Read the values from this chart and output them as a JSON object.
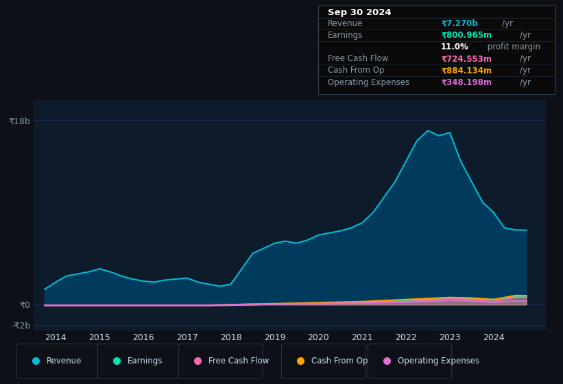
{
  "bg_color": "#0d1117",
  "plot_bg_color": "#0d1b2a",
  "title_box": {
    "date": "Sep 30 2024",
    "rows": [
      {
        "label": "Revenue",
        "value": "₹7.270b",
        "unit": "/yr",
        "value_color": "#00bcd4"
      },
      {
        "label": "Earnings",
        "value": "₹800.965m",
        "unit": "/yr",
        "value_color": "#00e5b0"
      },
      {
        "label": "",
        "value": "11.0%",
        "unit": " profit margin",
        "value_color": "#ffffff"
      },
      {
        "label": "Free Cash Flow",
        "value": "₹724.553m",
        "unit": "/yr",
        "value_color": "#ff69b4"
      },
      {
        "label": "Cash From Op",
        "value": "₹884.134m",
        "unit": "/yr",
        "value_color": "#ffa500"
      },
      {
        "label": "Operating Expenses",
        "value": "₹348.198m",
        "unit": "/yr",
        "value_color": "#da70d6"
      }
    ]
  },
  "yticks": [
    "₹18b",
    "₹0",
    "-₹2b"
  ],
  "ytick_values": [
    18,
    0,
    -2
  ],
  "ylim": [
    -2.5,
    20
  ],
  "xlim": [
    2013.5,
    2025.2
  ],
  "xticks": [
    2014,
    2015,
    2016,
    2017,
    2018,
    2019,
    2020,
    2021,
    2022,
    2023,
    2024
  ],
  "series": {
    "revenue": {
      "color": "#00bcd4",
      "fill_color": "#003a5c",
      "x": [
        2013.75,
        2014.0,
        2014.25,
        2014.5,
        2014.75,
        2015.0,
        2015.25,
        2015.5,
        2015.75,
        2016.0,
        2016.25,
        2016.5,
        2016.75,
        2017.0,
        2017.25,
        2017.5,
        2017.75,
        2018.0,
        2018.25,
        2018.5,
        2018.75,
        2019.0,
        2019.25,
        2019.5,
        2019.75,
        2020.0,
        2020.25,
        2020.5,
        2020.75,
        2021.0,
        2021.25,
        2021.5,
        2021.75,
        2022.0,
        2022.25,
        2022.5,
        2022.75,
        2023.0,
        2023.25,
        2023.5,
        2023.75,
        2024.0,
        2024.25,
        2024.5,
        2024.75
      ],
      "y": [
        1.5,
        2.2,
        2.8,
        3.0,
        3.2,
        3.5,
        3.2,
        2.8,
        2.5,
        2.3,
        2.2,
        2.4,
        2.5,
        2.6,
        2.2,
        2.0,
        1.8,
        2.0,
        3.5,
        5.0,
        5.5,
        6.0,
        6.2,
        6.0,
        6.3,
        6.8,
        7.0,
        7.2,
        7.5,
        8.0,
        9.0,
        10.5,
        12.0,
        14.0,
        16.0,
        17.0,
        16.5,
        16.8,
        14.0,
        12.0,
        10.0,
        9.0,
        7.5,
        7.3,
        7.27
      ]
    },
    "earnings": {
      "color": "#00e5b0",
      "x": [
        2013.75,
        2014.0,
        2014.5,
        2015.0,
        2015.5,
        2016.0,
        2016.5,
        2017.0,
        2017.5,
        2018.0,
        2018.5,
        2019.0,
        2019.5,
        2020.0,
        2020.5,
        2021.0,
        2021.5,
        2022.0,
        2022.5,
        2023.0,
        2023.5,
        2024.0,
        2024.5,
        2024.75
      ],
      "y": [
        -0.05,
        -0.05,
        -0.05,
        -0.05,
        -0.05,
        -0.05,
        -0.05,
        -0.05,
        -0.05,
        -0.05,
        0.0,
        0.05,
        0.1,
        0.15,
        0.2,
        0.25,
        0.3,
        0.35,
        0.5,
        0.7,
        0.6,
        0.5,
        0.8,
        0.8
      ]
    },
    "free_cash_flow": {
      "color": "#ff69b4",
      "x": [
        2013.75,
        2014.5,
        2015.0,
        2015.5,
        2016.0,
        2016.5,
        2017.0,
        2017.5,
        2018.0,
        2018.5,
        2019.0,
        2019.5,
        2020.0,
        2020.5,
        2021.0,
        2021.5,
        2022.0,
        2022.5,
        2023.0,
        2023.5,
        2024.0,
        2024.5,
        2024.75
      ],
      "y": [
        -0.1,
        -0.1,
        -0.1,
        -0.1,
        -0.1,
        -0.1,
        -0.1,
        -0.1,
        -0.05,
        0.0,
        0.05,
        0.1,
        0.1,
        0.15,
        0.2,
        0.25,
        0.3,
        0.4,
        0.6,
        0.5,
        0.3,
        0.7,
        0.72
      ]
    },
    "cash_from_op": {
      "color": "#ffa500",
      "x": [
        2013.75,
        2014.5,
        2015.0,
        2015.5,
        2016.0,
        2016.5,
        2017.0,
        2017.5,
        2018.0,
        2018.5,
        2019.0,
        2019.5,
        2020.0,
        2020.5,
        2021.0,
        2021.5,
        2022.0,
        2022.5,
        2023.0,
        2023.5,
        2024.0,
        2024.5,
        2024.75
      ],
      "y": [
        -0.05,
        -0.05,
        -0.05,
        -0.05,
        -0.05,
        -0.05,
        -0.05,
        -0.05,
        0.0,
        0.05,
        0.1,
        0.15,
        0.2,
        0.25,
        0.3,
        0.4,
        0.5,
        0.6,
        0.7,
        0.65,
        0.5,
        0.9,
        0.884
      ]
    },
    "operating_expenses": {
      "color": "#da70d6",
      "x": [
        2013.75,
        2014.5,
        2015.0,
        2015.5,
        2016.0,
        2016.5,
        2017.0,
        2017.5,
        2018.0,
        2018.5,
        2019.0,
        2019.5,
        2020.0,
        2020.5,
        2021.0,
        2021.5,
        2022.0,
        2022.5,
        2023.0,
        2023.5,
        2024.0,
        2024.5,
        2024.75
      ],
      "y": [
        -0.05,
        -0.05,
        -0.05,
        -0.05,
        -0.05,
        -0.05,
        -0.05,
        -0.05,
        0.0,
        0.05,
        0.05,
        0.1,
        0.1,
        0.15,
        0.15,
        0.2,
        0.25,
        0.3,
        0.4,
        0.35,
        0.25,
        0.35,
        0.348
      ]
    }
  },
  "legend_items": [
    {
      "label": "Revenue",
      "color": "#00bcd4"
    },
    {
      "label": "Earnings",
      "color": "#00e5b0"
    },
    {
      "label": "Free Cash Flow",
      "color": "#ff69b4"
    },
    {
      "label": "Cash From Op",
      "color": "#ffa500"
    },
    {
      "label": "Operating Expenses",
      "color": "#da70d6"
    }
  ],
  "grid_color": "#1e3050",
  "tick_color": "#8899aa",
  "text_color": "#ccddee"
}
